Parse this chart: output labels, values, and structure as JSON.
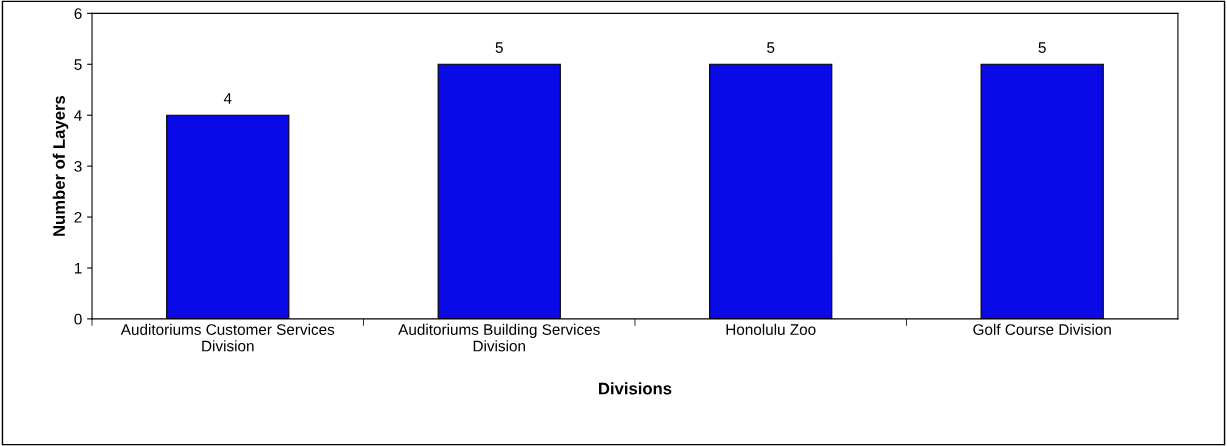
{
  "chart_data": {
    "type": "bar",
    "xlabel": "Divisions",
    "ylabel": "Number of Layers",
    "categories": [
      "Auditoriums Customer Services Division",
      "Auditoriums Building Services Division",
      "Honolulu Zoo",
      "Golf Course Division"
    ],
    "values": [
      4,
      5,
      5,
      5
    ],
    "color": "#0a0ae6",
    "ylim": [
      0,
      6
    ],
    "yticks": [
      0,
      1,
      2,
      3,
      4,
      5,
      6
    ],
    "grid": false,
    "data_labels": true
  }
}
